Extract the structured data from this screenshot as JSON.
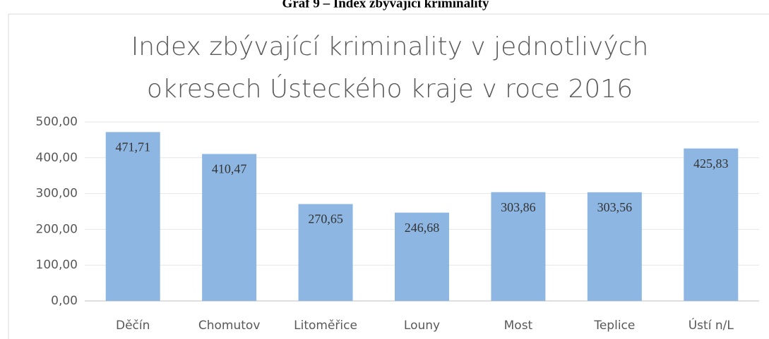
{
  "caption": "Graf 9 – Index zbývající kriminality",
  "chart_data": {
    "type": "bar",
    "title": [
      "Index zbývající kriminality v jednotlivých",
      "okresech Ústeckého kraje v roce 2016"
    ],
    "categories": [
      "Děčín",
      "Chomutov",
      "Litoměřice",
      "Louny",
      "Most",
      "Teplice",
      "Ústí n/L"
    ],
    "values": [
      471.71,
      410.47,
      270.65,
      246.68,
      303.86,
      303.56,
      425.83
    ],
    "value_labels": [
      "471,71",
      "410,47",
      "270,65",
      "246,68",
      "303,86",
      "303,56",
      "425,83"
    ],
    "color": "#8db7e2",
    "ylim": [
      0,
      500
    ],
    "yticks": [
      {
        "value": 0,
        "label": "0,00"
      },
      {
        "value": 100,
        "label": "100,00"
      },
      {
        "value": 200,
        "label": "200,00"
      },
      {
        "value": 300,
        "label": "300,00"
      },
      {
        "value": 400,
        "label": "400,00"
      },
      {
        "value": 500,
        "label": "500,00"
      }
    ],
    "grid": true
  }
}
